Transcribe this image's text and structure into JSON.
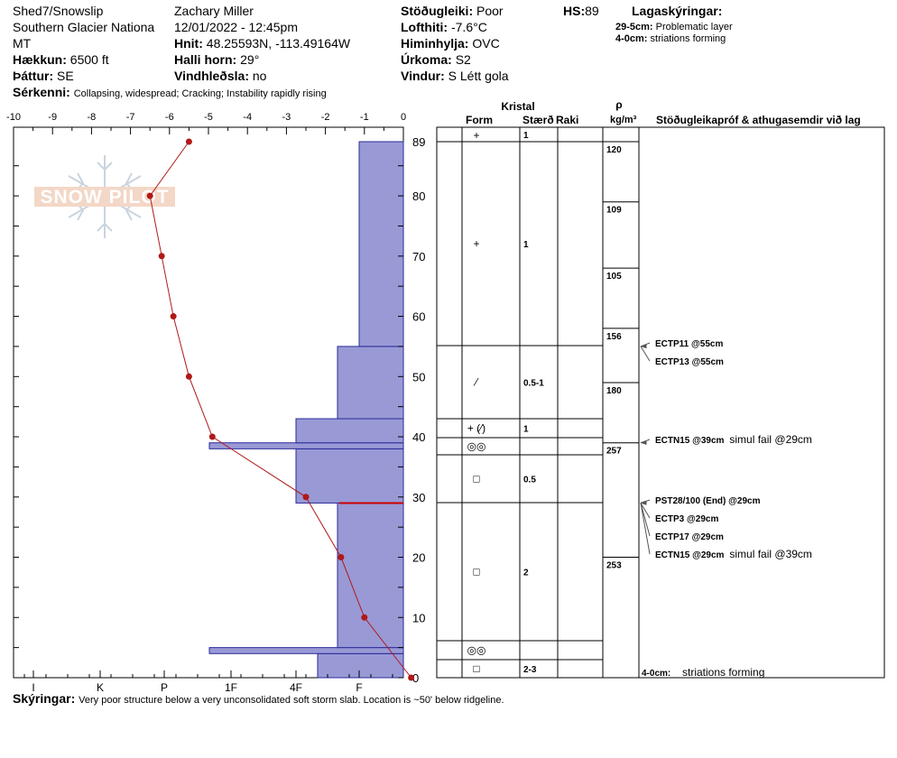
{
  "header": {
    "col1": [
      "Shed7/Snowslip",
      "Southern Glacier Nationa",
      "MT"
    ],
    "elevation_label": "Hækkun:",
    "elevation_value": "6500 ft",
    "aspect_label": "Þáttur:",
    "aspect_value": "SE",
    "observer": "Zachary Miller",
    "datetime": "12/01/2022 - 12:45pm",
    "coords_label": "Hnit:",
    "coords_value": "48.25593N, -113.49164W",
    "slope_label": "Halli horn:",
    "slope_value": "29°",
    "wind_load_label": "Vindhleðsla:",
    "wind_load_value": "no",
    "stability_label": "Stöðugleiki:",
    "stability_value": "Poor",
    "airtemp_label": "Lofthiti:",
    "airtemp_value": "-7.6°C",
    "sky_label": "Himinhylja:",
    "sky_value": "OVC",
    "precip_label": "Úrkoma:",
    "precip_value": "S2",
    "wind_label": "Vindur:",
    "wind_value": "S Létt gola",
    "hs_label": "HS:",
    "hs_value": "89",
    "legend_title": "Lagaskýringar:",
    "legend_items": [
      {
        "range": "29-5cm:",
        "text": "Problematic layer"
      },
      {
        "range": "4-0cm:",
        "text": "striations forming"
      }
    ],
    "features_label": "Sérkenni:",
    "features_value": "Collapsing, widespread;  Cracking;  Instability rapidly rising"
  },
  "footer": {
    "notes_label": "Skýringar:",
    "notes_value": "Very poor structure below a very unconsolidated soft storm slab. Location is ~50' below ridgeline."
  },
  "watermark": "SNOW PILOT",
  "table": {
    "header_crystal": "Kristal",
    "header_form": "Form",
    "header_size": "Stærð",
    "header_moisture": "Raki",
    "header_rho": "ρ",
    "header_density_unit": "kg/m³",
    "header_tests": "Stöðugleikapróf & athugasemdir við lag",
    "bottom_note_range": "4-0cm:",
    "bottom_note_text": "striations forming"
  },
  "chart_data": {
    "type": "snow-profile",
    "hs": 89,
    "temp_axis": {
      "ticks": [
        -10,
        -9,
        -8,
        -7,
        -6,
        -5,
        -4,
        -3,
        -2,
        -1,
        0
      ],
      "labels": [
        "-10",
        "-9",
        "-8",
        "-7",
        "-6",
        "-5",
        "-4",
        "-3",
        "-2",
        "-1",
        "0"
      ]
    },
    "height_axis": {
      "range": [
        0,
        89
      ],
      "ticks": [
        0,
        10,
        20,
        30,
        40,
        50,
        60,
        70,
        80,
        89
      ],
      "labels": [
        "0",
        "10",
        "20",
        "30",
        "40",
        "50",
        "60",
        "70",
        "80",
        "89"
      ]
    },
    "hardness_axis": {
      "labels": [
        "I",
        "K",
        "P",
        "1F",
        "4F",
        "F"
      ]
    },
    "temperature_profile": [
      {
        "h": 0,
        "t": 0.2
      },
      {
        "h": 10,
        "t": -1.0
      },
      {
        "h": 20,
        "t": -1.6
      },
      {
        "h": 30,
        "t": -2.5
      },
      {
        "h": 40,
        "t": -4.9
      },
      {
        "h": 50,
        "t": -5.5
      },
      {
        "h": 60,
        "t": -5.9
      },
      {
        "h": 70,
        "t": -6.2
      },
      {
        "h": 80,
        "t": -6.5
      },
      {
        "h": 89,
        "t": -5.5
      }
    ],
    "hardness_layers": [
      {
        "bottom": 0,
        "top": 4,
        "hardness": "4F-F"
      },
      {
        "bottom": 4,
        "top": 5,
        "hardness": "1F-"
      },
      {
        "bottom": 5,
        "top": 29,
        "hardness": "F+"
      },
      {
        "bottom": 29,
        "top": 38,
        "hardness": "4F"
      },
      {
        "bottom": 38,
        "top": 39,
        "hardness": "1F-"
      },
      {
        "bottom": 39,
        "top": 43,
        "hardness": "4F"
      },
      {
        "bottom": 43,
        "top": 55,
        "hardness": "F+"
      },
      {
        "bottom": 55,
        "top": 89,
        "hardness": "F"
      }
    ],
    "problem_layer_height": 29,
    "layer_boundaries": [
      89,
      55,
      43,
      40,
      37,
      29,
      6,
      3,
      0
    ],
    "layers": [
      {
        "top": 89,
        "bottom": 55,
        "form": "+",
        "size": "1"
      },
      {
        "top": 55,
        "bottom": 43,
        "form": "⁄",
        "size": "0.5-1"
      },
      {
        "top": 43,
        "bottom": 40,
        "form": "+ (⁄)",
        "size": "1"
      },
      {
        "top": 40,
        "bottom": 37,
        "form": "◎◎",
        "size": ""
      },
      {
        "top": 37,
        "bottom": 29,
        "form": "□",
        "size": "0.5"
      },
      {
        "top": 29,
        "bottom": 6,
        "form": "□",
        "size": "2"
      },
      {
        "top": 6,
        "bottom": 3,
        "form": "◎◎",
        "size": ""
      },
      {
        "top": 3,
        "bottom": 0,
        "form": "□",
        "size": "2-3"
      }
    ],
    "top_small_layer": {
      "form": "+",
      "size": "1"
    },
    "densities": [
      {
        "h": 89,
        "value": "120"
      },
      {
        "h": 79,
        "value": "109"
      },
      {
        "h": 68,
        "value": "105"
      },
      {
        "h": 58,
        "value": "156"
      },
      {
        "h": 49,
        "value": "180"
      },
      {
        "h": 39,
        "value": "257"
      },
      {
        "h": 20,
        "value": "253"
      }
    ],
    "density_lines": [
      89,
      79,
      68,
      58,
      49,
      39,
      20
    ],
    "tests": [
      {
        "h": 55,
        "label": "ECTP11 @55cm",
        "extra": ""
      },
      {
        "h": 55,
        "label": "ECTP13 @55cm",
        "extra": ""
      },
      {
        "h": 39,
        "label": "ECTN15 @39cm",
        "extra": "simul fail @29cm"
      },
      {
        "h": 29,
        "label": "PST28/100 (End) @29cm",
        "extra": ""
      },
      {
        "h": 29,
        "label": "ECTP3 @29cm",
        "extra": ""
      },
      {
        "h": 29,
        "label": "ECTP17 @29cm",
        "extra": ""
      },
      {
        "h": 29,
        "label": "ECTN15 @29cm",
        "extra": "simul fail @39cm"
      }
    ]
  }
}
